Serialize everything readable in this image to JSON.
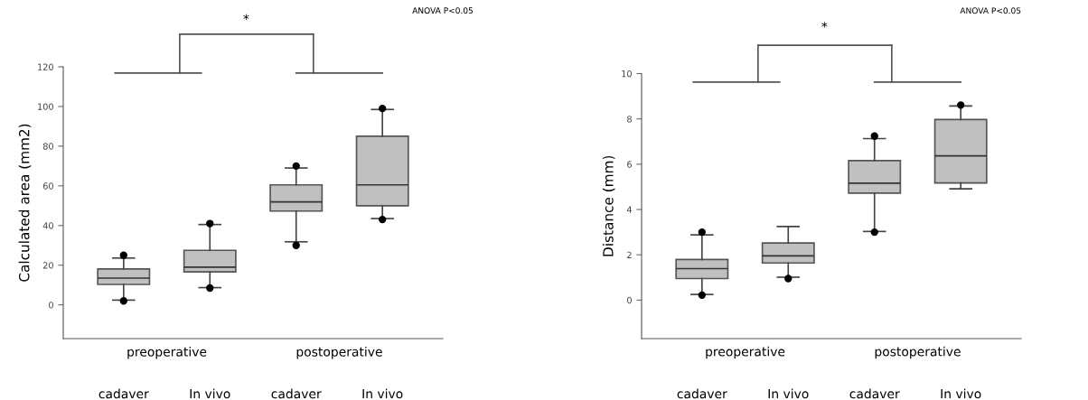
{
  "chart_data": [
    {
      "type": "box",
      "ylabel": "Calculated area (mm2)",
      "categories": [
        "cadaver",
        "In vivo",
        "cadaver",
        "In vivo"
      ],
      "boxes": [
        {
          "low": 2.4,
          "q1": 10.3,
          "median": 13.5,
          "q3": 18.1,
          "high": 23.6,
          "outliers": [
            25,
            2
          ]
        },
        {
          "low": 8.7,
          "q1": 16.6,
          "median": 19,
          "q3": 27.5,
          "high": 40.5,
          "outliers": [
            41,
            8.5
          ]
        },
        {
          "low": 31.8,
          "q1": 47.3,
          "median": 51.9,
          "q3": 60.5,
          "high": 69,
          "outliers": [
            70,
            30
          ]
        },
        {
          "low": 43.5,
          "q1": 50,
          "median": 60.5,
          "q3": 85,
          "high": 98.5,
          "outliers": [
            99,
            43
          ]
        }
      ],
      "ylim": [
        -17,
        120
      ],
      "yticks": [
        0,
        20,
        40,
        60,
        80,
        100,
        120
      ],
      "annotations": [
        "*",
        "ANOVA P<0.05",
        "preoperative",
        "postoperative"
      ]
    },
    {
      "type": "box",
      "ylabel": "Distance (mm)",
      "categories": [
        "cadaver",
        "In vivo",
        "cadaver",
        "In vivo"
      ],
      "boxes": [
        {
          "low": 0.25,
          "q1": 0.95,
          "median": 1.39,
          "q3": 1.79,
          "high": 2.88,
          "outliers": [
            3.0,
            0.22
          ]
        },
        {
          "low": 1.01,
          "q1": 1.64,
          "median": 1.95,
          "q3": 2.52,
          "high": 3.25,
          "outliers": [
            0.95
          ]
        },
        {
          "low": 3.03,
          "q1": 4.72,
          "median": 5.16,
          "q3": 6.16,
          "high": 7.13,
          "outliers": [
            7.24,
            3.0
          ]
        },
        {
          "low": 4.91,
          "q1": 5.17,
          "median": 6.37,
          "q3": 7.97,
          "high": 8.57,
          "outliers": [
            8.61
          ]
        }
      ],
      "ylim": [
        -1.7,
        10
      ],
      "yticks": [
        0,
        2,
        4,
        6,
        8,
        10
      ],
      "annotations": [
        "*",
        "ANOVA P<0.05",
        "preoperative",
        "postoperative"
      ]
    }
  ]
}
